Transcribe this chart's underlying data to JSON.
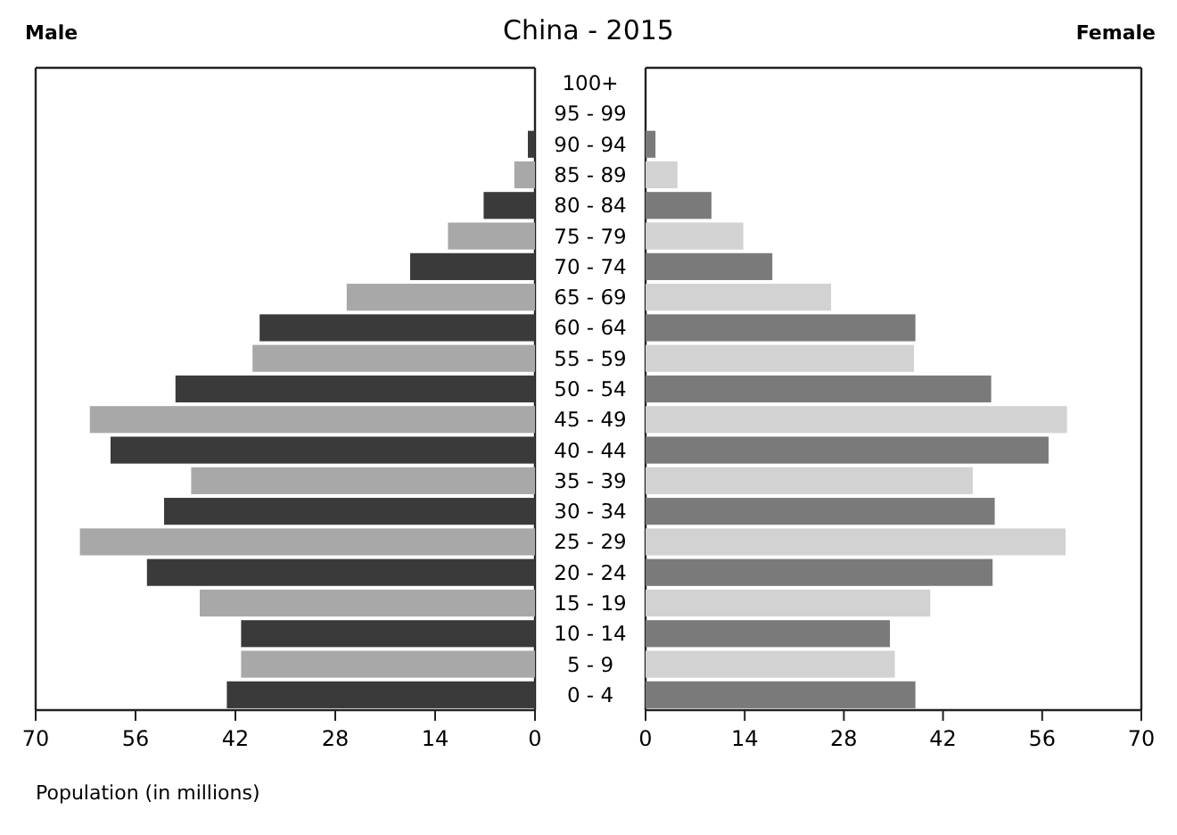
{
  "chart_data": [
    {
      "type": "bar",
      "orientation": "horizontal",
      "title": "China - 2015",
      "subtitle": "Male",
      "xlabel": "Population (in millions)",
      "categories": [
        "100+",
        "95 - 99",
        "90 - 94",
        "85 - 89",
        "80 - 84",
        "75 - 79",
        "70 - 74",
        "65 - 69",
        "60 - 64",
        "55 - 59",
        "50 - 54",
        "45 - 49",
        "40 - 44",
        "35 - 39",
        "30 - 34",
        "25 - 29",
        "20 - 24",
        "15 - 19",
        "10 - 14",
        "5 - 9",
        "0 - 4"
      ],
      "values": [
        0,
        0,
        1,
        2.9,
        7.2,
        12.2,
        17.5,
        26.4,
        38.6,
        39.6,
        50.4,
        62.4,
        59.5,
        48.2,
        52,
        63.8,
        54.4,
        47,
        41.2,
        41.2,
        43.2
      ],
      "colors": [
        "#3a3a3a",
        "#a8a8a8",
        "#3a3a3a",
        "#a8a8a8",
        "#3a3a3a",
        "#a8a8a8",
        "#3a3a3a",
        "#a8a8a8",
        "#3a3a3a",
        "#a8a8a8",
        "#3a3a3a",
        "#a8a8a8",
        "#3a3a3a",
        "#a8a8a8",
        "#3a3a3a",
        "#a8a8a8",
        "#3a3a3a",
        "#a8a8a8",
        "#3a3a3a",
        "#a8a8a8",
        "#3a3a3a"
      ],
      "xlim": [
        70,
        0
      ],
      "xticks": [
        70,
        56,
        42,
        28,
        14,
        0
      ]
    },
    {
      "type": "bar",
      "orientation": "horizontal",
      "subtitle": "Female",
      "categories": [
        null,
        null,
        null,
        null,
        null,
        null,
        null,
        null,
        null,
        null,
        null,
        null,
        null,
        null,
        null,
        null,
        null,
        null,
        null,
        null,
        null
      ],
      "values": [
        0,
        0,
        1.4,
        4.5,
        9.3,
        13.8,
        17.9,
        26.2,
        38.1,
        37.9,
        48.8,
        59.5,
        56.9,
        46.2,
        49.3,
        59.3,
        49,
        40.2,
        34.5,
        35.2,
        38.1
      ],
      "colors": [
        "#7a7a7a",
        "#d2d2d2",
        "#7a7a7a",
        "#d2d2d2",
        "#7a7a7a",
        "#d2d2d2",
        "#7a7a7a",
        "#d2d2d2",
        "#7a7a7a",
        "#d2d2d2",
        "#7a7a7a",
        "#d2d2d2",
        "#7a7a7a",
        "#d2d2d2",
        "#7a7a7a",
        "#d2d2d2",
        "#7a7a7a",
        "#d2d2d2",
        "#7a7a7a",
        "#d2d2d2",
        "#7a7a7a"
      ],
      "xlim": [
        0,
        70
      ],
      "xticks": [
        0,
        14,
        28,
        42,
        56,
        70
      ]
    }
  ]
}
